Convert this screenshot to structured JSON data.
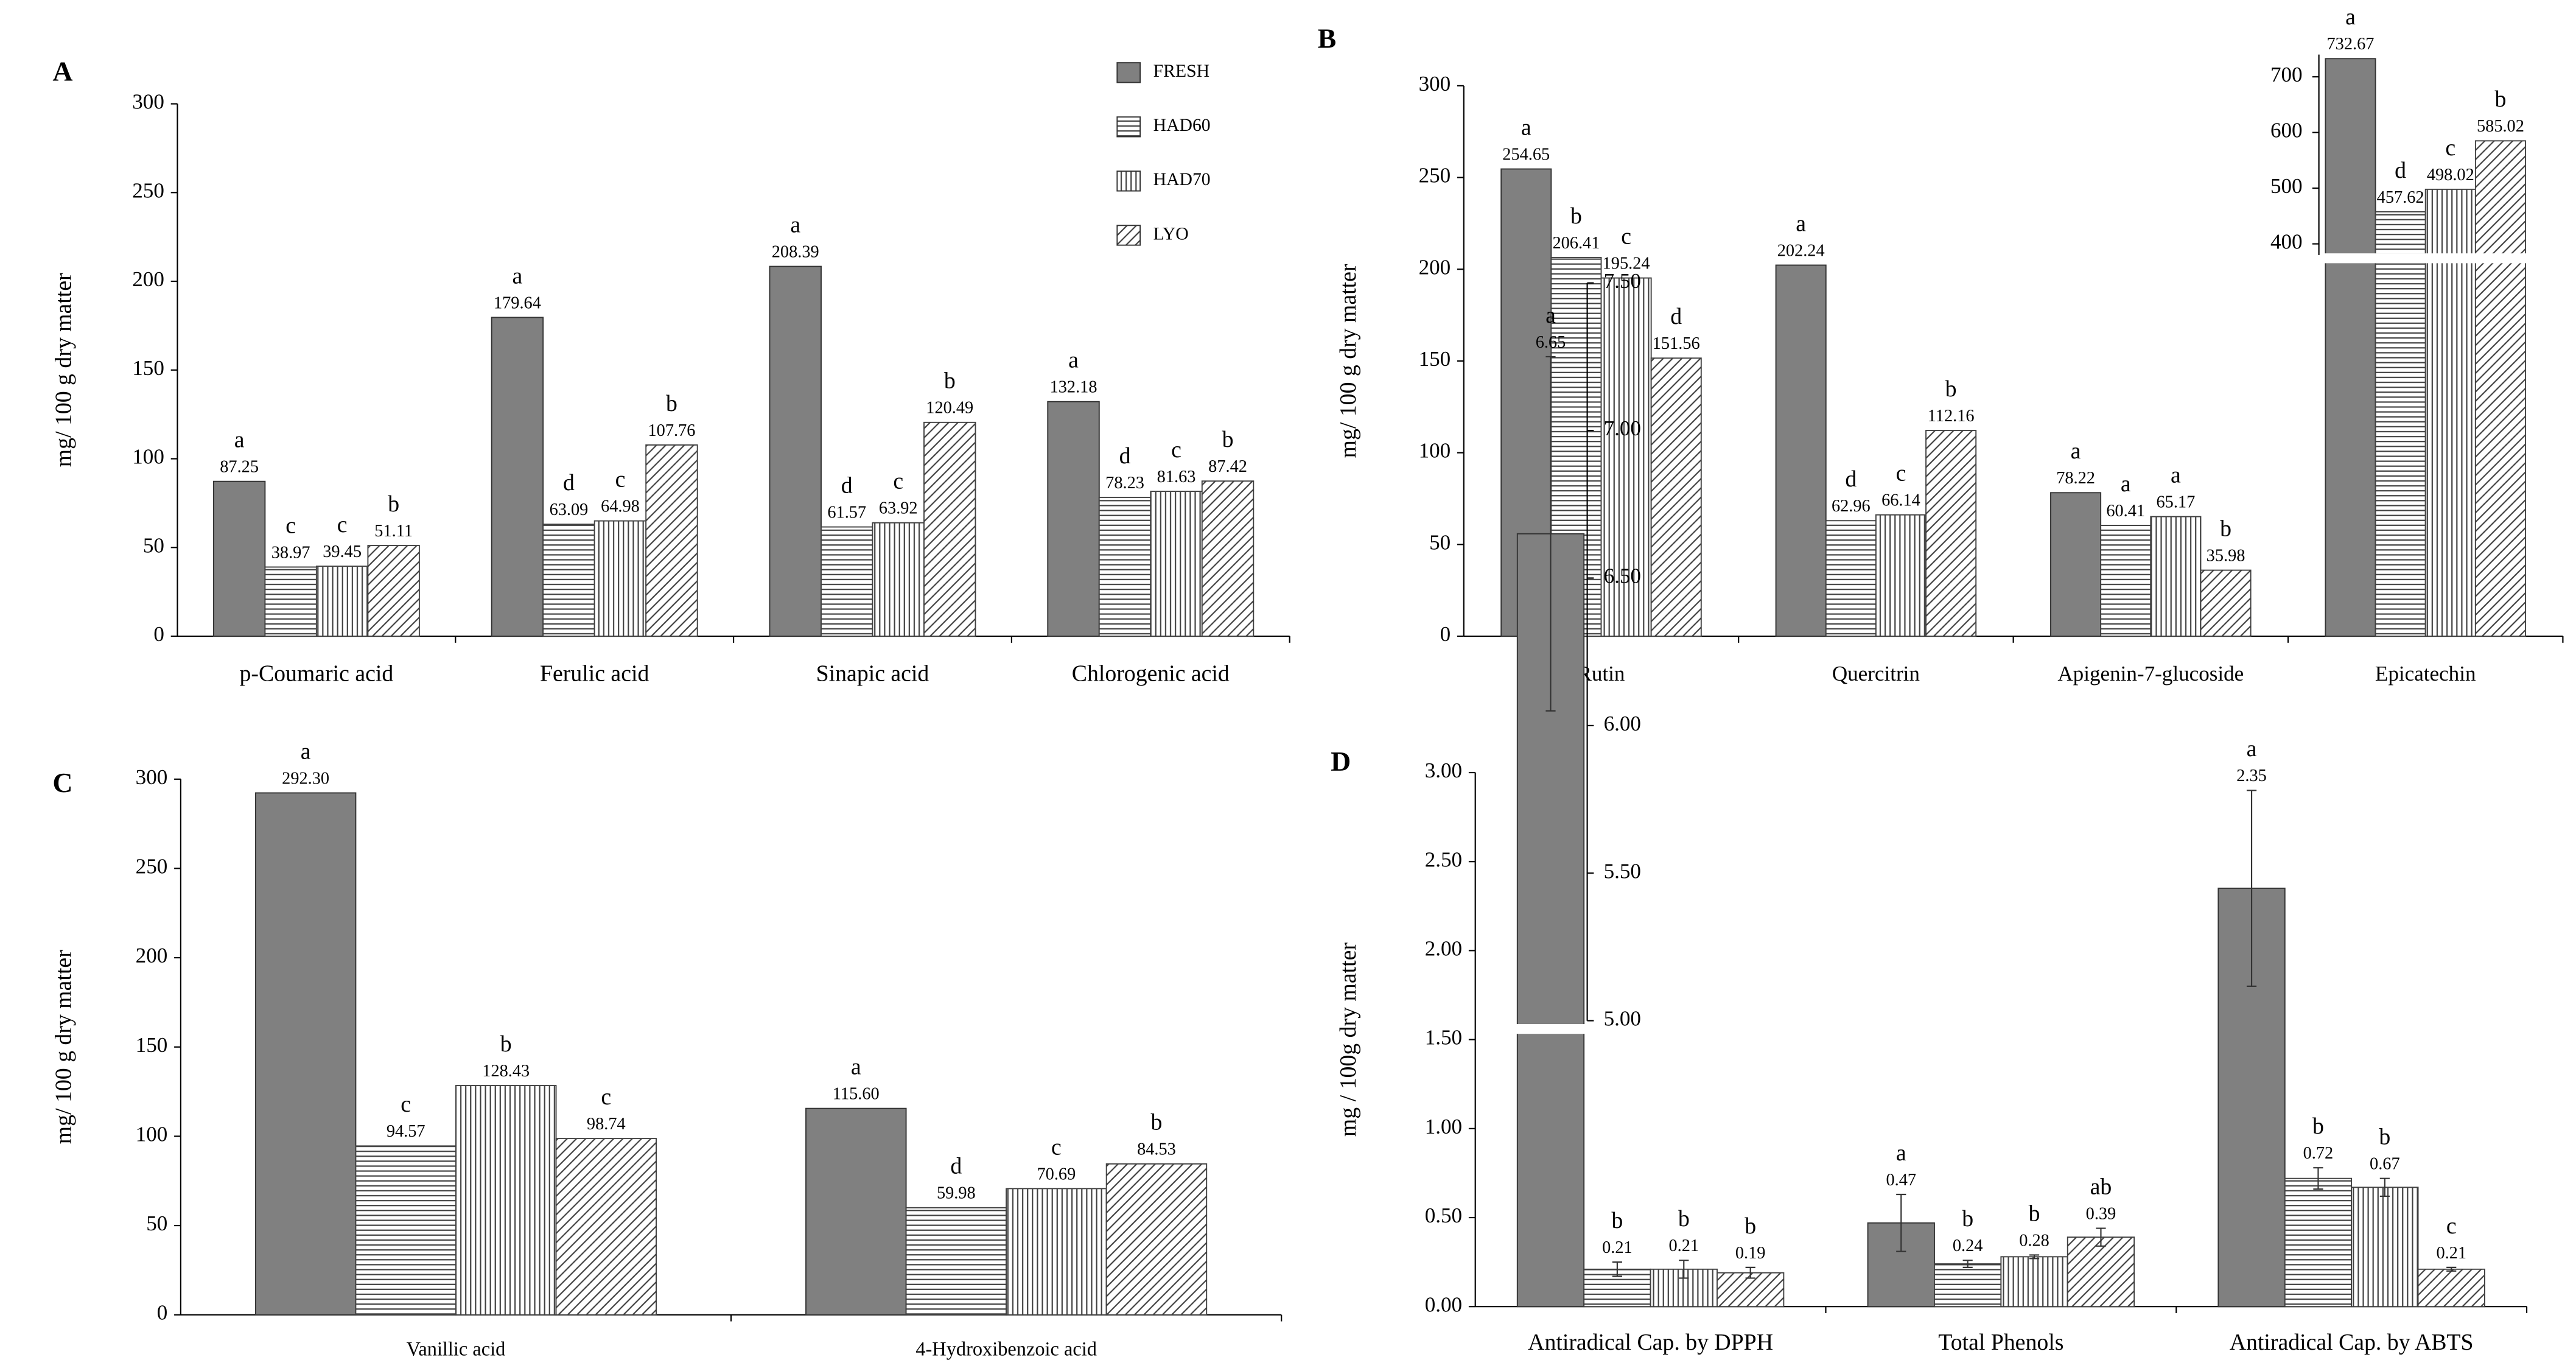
{
  "chart_data": [
    {
      "type": "bar",
      "panel": "A",
      "ylabel": "mg/ 100 g dry matter",
      "categories": [
        "p-Coumaric acid",
        "Ferulic acid",
        "Sinapic acid",
        "Chlorogenic acid"
      ],
      "ylim": [
        0,
        300
      ],
      "yticks": [
        0,
        50,
        100,
        150,
        200,
        250,
        300
      ],
      "legend": "top-right",
      "series": [
        {
          "name": "FRESH",
          "color": "#808080",
          "pattern": "solid",
          "values": [
            87.25,
            179.64,
            208.39,
            132.18
          ],
          "letters": [
            "a",
            "a",
            "a",
            "a"
          ]
        },
        {
          "name": "HAD60",
          "color": "#404040",
          "pattern": "horizontal",
          "values": [
            38.97,
            63.09,
            61.57,
            78.23
          ],
          "letters": [
            "c",
            "d",
            "d",
            "d"
          ]
        },
        {
          "name": "HAD70",
          "color": "#404040",
          "pattern": "vertical",
          "values": [
            39.45,
            64.98,
            63.92,
            81.63
          ],
          "letters": [
            "c",
            "c",
            "c",
            "c"
          ]
        },
        {
          "name": "LYO",
          "color": "#404040",
          "pattern": "diagonal",
          "values": [
            51.11,
            107.76,
            120.49,
            87.42
          ],
          "letters": [
            "b",
            "b",
            "b",
            "b"
          ]
        }
      ]
    },
    {
      "type": "bar",
      "panel": "B",
      "ylabel": "mg/ 100 g dry matter",
      "categories": [
        "Rutin",
        "Quercitrin",
        "Apigenin-7-glucoside",
        "Epicatechin"
      ],
      "ylim": [
        0,
        300
      ],
      "yticks": [
        0,
        50,
        100,
        150,
        200,
        250,
        300
      ],
      "y2lim": [
        380,
        740
      ],
      "y2ticks": [
        400,
        500,
        600,
        700
      ],
      "inset_bars": [
        [
          0,
          3
        ],
        [
          1,
          3
        ],
        [
          2,
          3
        ],
        [
          3,
          3
        ]
      ],
      "series": [
        {
          "color": "#808080",
          "pattern": "solid",
          "values": [
            254.65,
            202.24,
            78.22,
            732.67
          ],
          "letters": [
            "a",
            "a",
            "a",
            "a"
          ]
        },
        {
          "color": "#404040",
          "pattern": "horizontal",
          "values": [
            206.41,
            62.96,
            60.41,
            457.62
          ],
          "letters": [
            "b",
            "d",
            "a",
            "d"
          ]
        },
        {
          "color": "#404040",
          "pattern": "vertical",
          "values": [
            195.24,
            66.14,
            65.17,
            498.02
          ],
          "letters": [
            "c",
            "c",
            "a",
            "c"
          ]
        },
        {
          "color": "#404040",
          "pattern": "diagonal",
          "values": [
            151.56,
            112.16,
            35.98,
            585.02
          ],
          "letters": [
            "d",
            "b",
            "b",
            "b"
          ]
        }
      ]
    },
    {
      "type": "bar",
      "panel": "C",
      "ylabel": "mg/ 100 g dry matter",
      "categories": [
        "Vanillic acid",
        "4-Hydroxibenzoic acid"
      ],
      "ylim": [
        0,
        300
      ],
      "yticks": [
        0,
        50,
        100,
        150,
        200,
        250,
        300
      ],
      "series": [
        {
          "color": "#808080",
          "pattern": "solid",
          "values": [
            292.3,
            115.6
          ],
          "value_labels": [
            "292.30",
            "115.60"
          ],
          "letters": [
            "a",
            "a"
          ]
        },
        {
          "color": "#404040",
          "pattern": "horizontal",
          "values": [
            94.57,
            59.98
          ],
          "letters": [
            "c",
            "d"
          ]
        },
        {
          "color": "#404040",
          "pattern": "vertical",
          "values": [
            128.43,
            70.69
          ],
          "letters": [
            "b",
            "c"
          ]
        },
        {
          "color": "#404040",
          "pattern": "diagonal",
          "values": [
            98.74,
            84.53
          ],
          "letters": [
            "c",
            "b"
          ]
        }
      ]
    },
    {
      "type": "bar",
      "panel": "D",
      "ylabel": "mg / 100g dry matter",
      "categories": [
        "Antiradical Cap. by DPPH",
        "Total Phenols",
        "Antiradical Cap. by ABTS"
      ],
      "ylim": [
        0,
        3
      ],
      "yticks": [
        {
          "value": 0,
          "label": "0.00"
        },
        {
          "value": 0.5,
          "label": "0.50"
        },
        {
          "value": 1,
          "label": "1.00"
        },
        {
          "value": 1.5,
          "label": "1.50"
        },
        {
          "value": 2,
          "label": "2.00"
        },
        {
          "value": 2.5,
          "label": "2.50"
        },
        {
          "value": 3,
          "label": "3.00"
        }
      ],
      "y2lim": [
        5,
        7.5
      ],
      "y2ticks": [
        {
          "value": 5,
          "label": "5.00"
        },
        {
          "value": 5.5,
          "label": "5.50"
        },
        {
          "value": 6,
          "label": "6.00"
        },
        {
          "value": 6.5,
          "label": "6.50"
        },
        {
          "value": 7,
          "label": "7.00"
        },
        {
          "value": 7.5,
          "label": "7.50"
        }
      ],
      "inset_bars": [
        [
          0,
          0
        ]
      ],
      "series": [
        {
          "color": "#808080",
          "pattern": "solid",
          "values": [
            6.65,
            0.47,
            2.35
          ],
          "errors": [
            0.6,
            0.16,
            0.55
          ],
          "letters": [
            "a",
            "a",
            "a"
          ]
        },
        {
          "color": "#404040",
          "pattern": "horizontal",
          "values": [
            0.21,
            0.24,
            0.72
          ],
          "errors": [
            0.04,
            0.02,
            0.06
          ],
          "letters": [
            "b",
            "b",
            "b"
          ]
        },
        {
          "color": "#404040",
          "pattern": "vertical",
          "values": [
            0.21,
            0.28,
            0.67
          ],
          "errors": [
            0.05,
            0.01,
            0.05
          ],
          "letters": [
            "b",
            "b",
            "b"
          ]
        },
        {
          "color": "#404040",
          "pattern": "diagonal",
          "values": [
            0.19,
            0.39,
            0.21
          ],
          "errors": [
            0.03,
            0.05,
            0.01
          ],
          "letters": [
            "b",
            "ab",
            "c"
          ]
        }
      ]
    }
  ]
}
